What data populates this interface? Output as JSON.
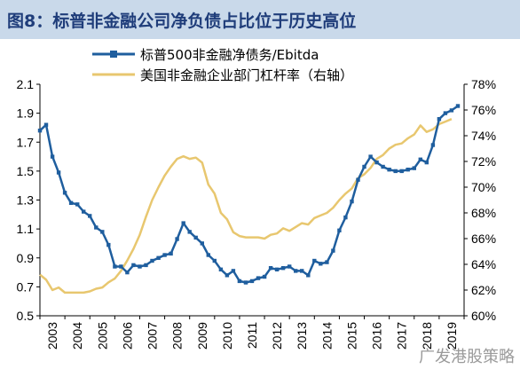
{
  "title": "图8：标普非金融公司净负债占比位于历史高位",
  "watermark": "广发港股策略",
  "colors": {
    "series1": "#1f5e9e",
    "series2": "#e8c76f",
    "title_bg": "#c9d9ea",
    "title_text": "#1f3d7a"
  },
  "chart_data": {
    "type": "line",
    "title": "",
    "x_axis": {
      "ticks": [
        "2003",
        "2004",
        "2005",
        "2006",
        "2007",
        "2008",
        "2009",
        "2010",
        "2011",
        "2012",
        "2013",
        "2014",
        "2015",
        "2016",
        "2017",
        "2018",
        "2019"
      ]
    },
    "y_left": {
      "lim": [
        0.5,
        2.1
      ],
      "ticks": [
        "0.5",
        "0.7",
        "0.9",
        "1.1",
        "1.3",
        "1.5",
        "1.7",
        "1.9",
        "2.1"
      ]
    },
    "y_right": {
      "lim": [
        60,
        78
      ],
      "ticks": [
        "60%",
        "62%",
        "64%",
        "66%",
        "68%",
        "70%",
        "72%",
        "74%",
        "76%",
        "78%"
      ]
    },
    "series": [
      {
        "name": "标普500非金融净债务/Ebitda",
        "axis": "left",
        "marker": "square",
        "x": [
          2003.0,
          2003.25,
          2003.5,
          2003.75,
          2004.0,
          2004.25,
          2004.5,
          2004.75,
          2005.0,
          2005.25,
          2005.5,
          2005.75,
          2006.0,
          2006.25,
          2006.5,
          2006.75,
          2007.0,
          2007.25,
          2007.5,
          2007.75,
          2008.0,
          2008.25,
          2008.5,
          2008.75,
          2009.0,
          2009.25,
          2009.5,
          2009.75,
          2010.0,
          2010.25,
          2010.5,
          2010.75,
          2011.0,
          2011.25,
          2011.5,
          2011.75,
          2012.0,
          2012.25,
          2012.5,
          2012.75,
          2013.0,
          2013.25,
          2013.5,
          2013.75,
          2014.0,
          2014.25,
          2014.5,
          2014.75,
          2015.0,
          2015.25,
          2015.5,
          2015.75,
          2016.0,
          2016.25,
          2016.5,
          2016.75,
          2017.0,
          2017.25,
          2017.5,
          2017.75,
          2018.0,
          2018.25,
          2018.5,
          2018.75,
          2019.0,
          2019.25,
          2019.5,
          2019.75
        ],
        "y": [
          1.78,
          1.82,
          1.6,
          1.49,
          1.35,
          1.28,
          1.27,
          1.22,
          1.19,
          1.11,
          1.08,
          0.99,
          0.84,
          0.84,
          0.8,
          0.85,
          0.84,
          0.85,
          0.88,
          0.9,
          0.92,
          0.93,
          1.03,
          1.14,
          1.08,
          1.04,
          1.0,
          0.92,
          0.88,
          0.82,
          0.78,
          0.81,
          0.74,
          0.73,
          0.74,
          0.76,
          0.77,
          0.83,
          0.82,
          0.83,
          0.84,
          0.81,
          0.81,
          0.78,
          0.88,
          0.86,
          0.87,
          0.95,
          1.09,
          1.18,
          1.29,
          1.44,
          1.53,
          1.6,
          1.56,
          1.53,
          1.51,
          1.5,
          1.5,
          1.51,
          1.52,
          1.58,
          1.56,
          1.68,
          1.86,
          1.9,
          1.92,
          1.95
        ]
      },
      {
        "name": "美国非金融企业部门杠杆率（右轴）",
        "axis": "right",
        "marker": "none",
        "x": [
          2003.0,
          2003.25,
          2003.5,
          2003.75,
          2004.0,
          2004.25,
          2004.5,
          2004.75,
          2005.0,
          2005.25,
          2005.5,
          2005.75,
          2006.0,
          2006.25,
          2006.5,
          2006.75,
          2007.0,
          2007.25,
          2007.5,
          2007.75,
          2008.0,
          2008.25,
          2008.5,
          2008.75,
          2009.0,
          2009.25,
          2009.5,
          2009.75,
          2010.0,
          2010.25,
          2010.5,
          2010.75,
          2011.0,
          2011.25,
          2011.5,
          2011.75,
          2012.0,
          2012.25,
          2012.5,
          2012.75,
          2013.0,
          2013.25,
          2013.5,
          2013.75,
          2014.0,
          2014.25,
          2014.5,
          2014.75,
          2015.0,
          2015.25,
          2015.5,
          2015.75,
          2016.0,
          2016.25,
          2016.5,
          2016.75,
          2017.0,
          2017.25,
          2017.5,
          2017.75,
          2018.0,
          2018.25,
          2018.5,
          2018.75,
          2019.0,
          2019.25,
          2019.5
        ],
        "y": [
          63.2,
          62.8,
          62.0,
          62.2,
          61.8,
          61.8,
          61.8,
          61.8,
          61.9,
          62.1,
          62.2,
          62.6,
          62.9,
          63.5,
          64.3,
          65.2,
          66.3,
          67.7,
          69.0,
          70.0,
          70.9,
          71.6,
          72.2,
          72.4,
          72.2,
          72.3,
          71.9,
          70.2,
          69.5,
          68.0,
          67.5,
          66.5,
          66.2,
          66.1,
          66.1,
          66.1,
          66.0,
          66.3,
          66.4,
          66.8,
          66.6,
          66.9,
          67.2,
          67.1,
          67.6,
          67.8,
          68.0,
          68.4,
          69.0,
          69.5,
          69.9,
          70.7,
          71.0,
          71.5,
          72.2,
          72.5,
          73.0,
          73.3,
          73.4,
          73.8,
          74.1,
          74.8,
          74.3,
          74.5,
          74.9,
          75.1,
          75.3
        ]
      }
    ]
  }
}
